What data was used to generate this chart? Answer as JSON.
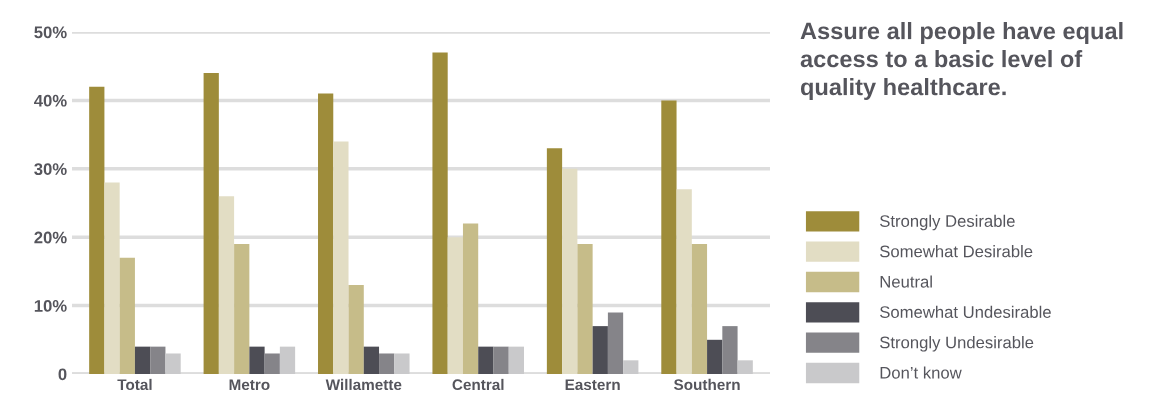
{
  "chart_data": {
    "type": "bar",
    "title": "Assure all people have equal access to a basic level of quality healthcare.",
    "categories": [
      "Total",
      "Metro",
      "Willamette",
      "Central",
      "Eastern",
      "Southern"
    ],
    "series": [
      {
        "name": "Strongly Desirable",
        "color": "#9e8c3a",
        "values": [
          42,
          44,
          41,
          47,
          33,
          40
        ]
      },
      {
        "name": "Somewhat Desirable",
        "color": "#e2ddc4",
        "values": [
          28,
          26,
          34,
          20,
          30,
          27
        ]
      },
      {
        "name": "Neutral",
        "color": "#c6bc89",
        "values": [
          17,
          19,
          13,
          22,
          19,
          19
        ]
      },
      {
        "name": "Somewhat Undesirable",
        "color": "#4d4d55",
        "values": [
          4,
          4,
          4,
          4,
          7,
          5
        ]
      },
      {
        "name": "Strongly Undesirable",
        "color": "#858489",
        "values": [
          4,
          3,
          3,
          4,
          9,
          7
        ]
      },
      {
        "name": "Don’t know",
        "color": "#c9c9cb",
        "values": [
          3,
          4,
          3,
          4,
          2,
          2
        ]
      }
    ],
    "ylim": [
      0,
      50
    ],
    "yticks": [
      0,
      {
        "value": 10,
        "label": "10%"
      },
      {
        "value": 20,
        "label": "20%"
      },
      {
        "value": 30,
        "label": "30%"
      },
      {
        "value": 40,
        "label": "40%"
      },
      {
        "value": 50,
        "label": "50%"
      }
    ],
    "grid": "y",
    "legend": "right"
  }
}
